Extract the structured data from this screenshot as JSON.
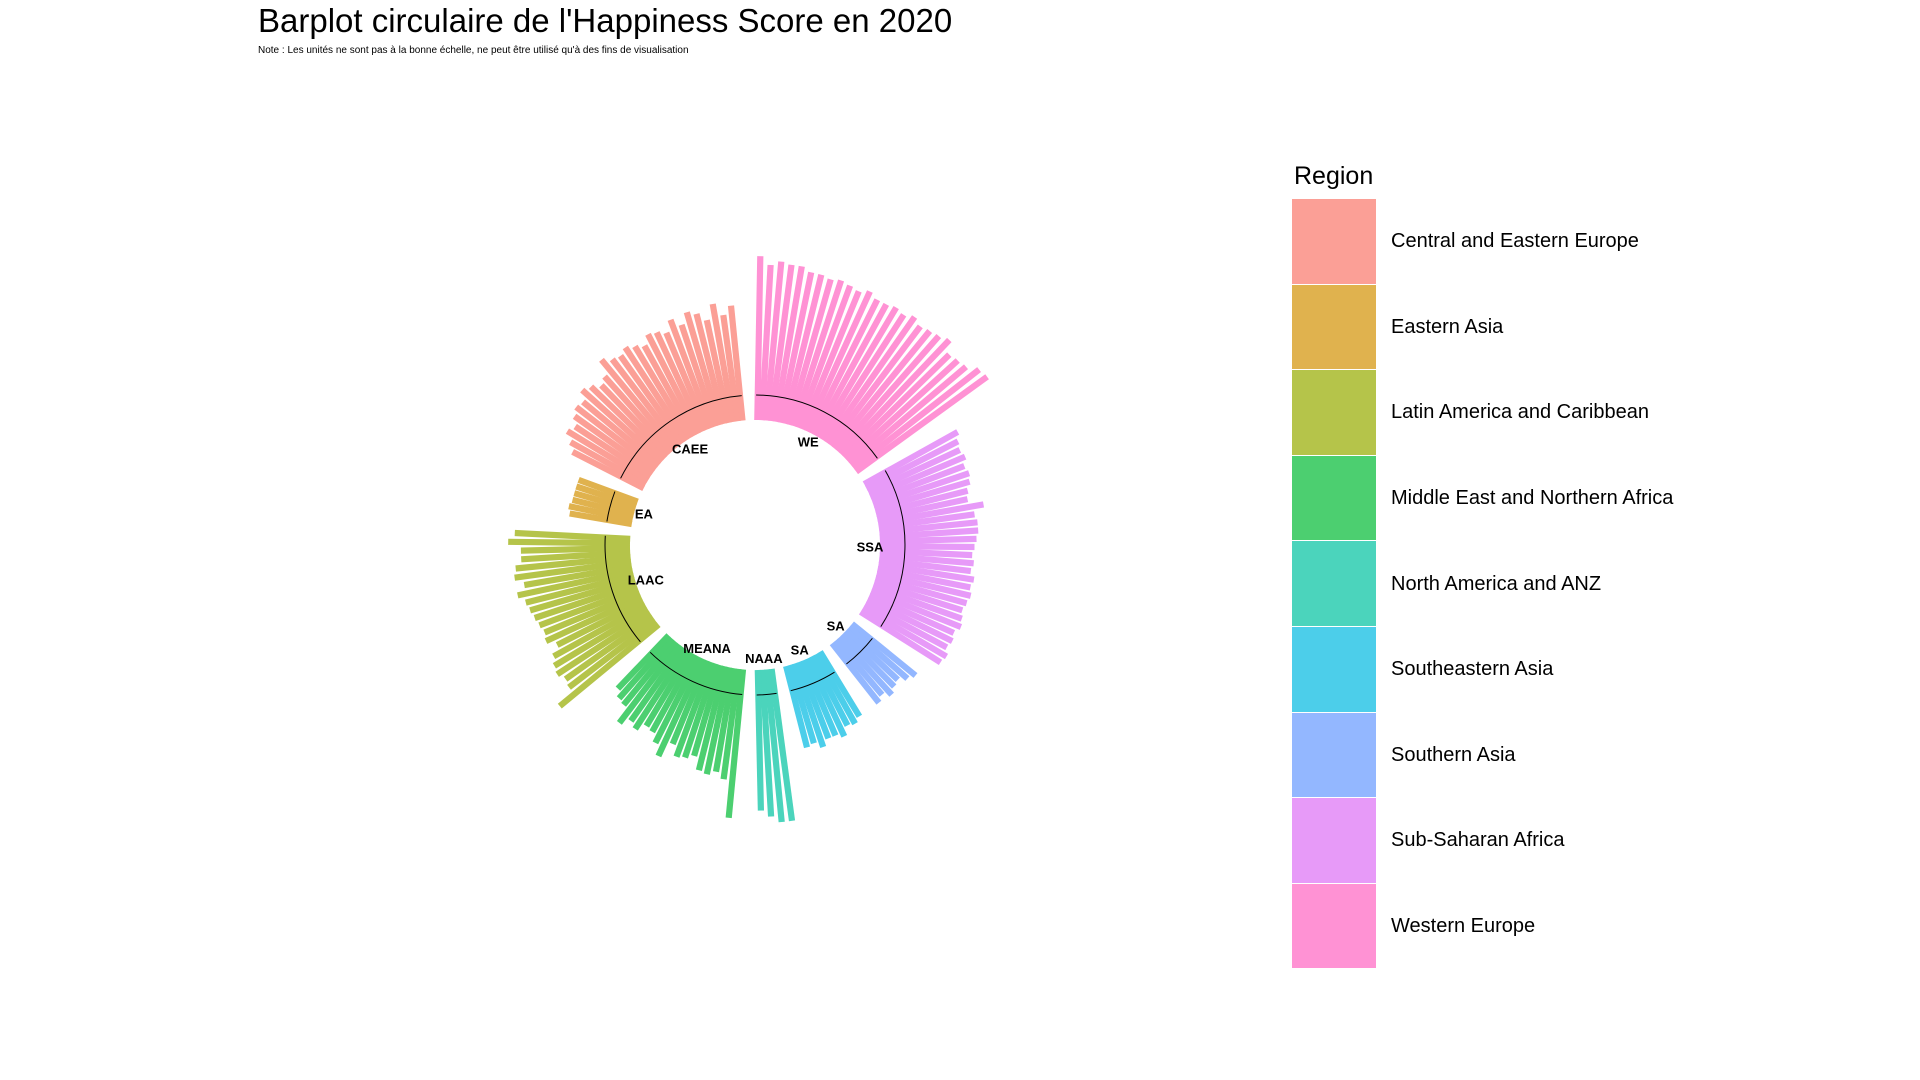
{
  "chart_data": {
    "type": "bar",
    "polar": true,
    "title": "Barplot circulaire de l'Happiness Score en 2020",
    "subtitle": "Note : Les unités ne sont pas à la bonne échelle, ne peut être utilisé qu'à des fins de visualisation",
    "legend": {
      "title": "Region",
      "placement": "right"
    },
    "groups": [
      {
        "label": "WE",
        "name": "Western Europe",
        "color": "#FF92D4",
        "values": [
          7.8,
          7.4,
          7.6,
          7.5,
          7.5,
          7.3,
          7.3,
          7.2,
          7.3,
          7.2,
          7.1,
          7.3,
          7.1,
          7.1,
          7.2,
          7.1,
          7.3,
          7.1,
          7.2,
          7.3,
          7.5,
          7.0,
          7.1,
          7.2,
          7.6,
          7.7
        ]
      },
      {
        "label": "SSA",
        "name": "Sub-Saharan Africa",
        "color": "#E79AF8",
        "values": [
          5.1,
          4.9,
          4.8,
          4.9,
          4.7,
          4.8,
          4.7,
          4.5,
          4.4,
          5.1,
          4.6,
          4.7,
          4.7,
          4.6,
          4.5,
          4.4,
          4.5,
          4.4,
          4.6,
          4.5,
          4.6,
          4.5,
          4.4,
          4.5,
          4.6,
          4.4,
          4.5,
          4.4,
          4.6,
          4.5
        ]
      },
      {
        "label": "SA",
        "name": "Southern Asia",
        "color": "#93B7FF",
        "values": [
          3.9,
          3.7,
          3.4,
          3.5,
          3.7,
          3.4,
          3.6
        ]
      },
      {
        "label": "SA",
        "name": "Southeastern Asia",
        "color": "#4CCEEA",
        "values": [
          3.6,
          3.8,
          3.7,
          4.1,
          3.9,
          3.9,
          4.2,
          3.9,
          4.0
        ]
      },
      {
        "label": "NAAA",
        "name": "North America and ANZ",
        "color": "#4BD4BC",
        "values": [
          7.3,
          7.3,
          7.0,
          6.7
        ]
      },
      {
        "label": "MEANA",
        "name": "Middle East and Northern Africa",
        "color": "#4CCF70",
        "values": [
          7.1,
          5.3,
          5.0,
          5.2,
          5.1,
          4.5,
          4.7,
          4.8,
          4.3,
          5.1,
          4.6,
          4.2,
          4.1,
          4.5,
          4.3,
          4.7,
          3.9,
          3.8,
          3.5
        ]
      },
      {
        "label": "LAAC",
        "name": "Latin America and Caribbean",
        "color": "#B5C44A",
        "values": [
          6.1,
          5.2,
          5.1,
          5.3,
          5.2,
          5.0,
          4.6,
          5.0,
          4.9,
          5.0,
          5.1,
          5.2,
          5.3,
          5.6,
          5.2,
          5.6,
          5.5,
          5.2,
          5.2,
          5.8,
          5.5
        ]
      },
      {
        "label": "EA",
        "name": "Eastern Asia",
        "color": "#E0B24E",
        "values": [
          3.0,
          3.1,
          3.0,
          3.0,
          3.0,
          3.0
        ]
      },
      {
        "label": "CAEE",
        "name": "Central and Eastern Europe",
        "color": "#FB9F96",
        "values": [
          3.8,
          4.1,
          4.5,
          4.3,
          4.6,
          4.8,
          4.7,
          5.1,
          4.9,
          4.6,
          4.8,
          5.5,
          5.2,
          5.1,
          5.3,
          5.1,
          4.9,
          5.3,
          5.2,
          5.0,
          5.5,
          5.1,
          5.6,
          5.4,
          5.0,
          5.7,
          5.1,
          5.5
        ]
      }
    ]
  },
  "legend_items": [
    {
      "label": "Central and Eastern Europe",
      "color": "#FB9F96"
    },
    {
      "label": "Eastern Asia",
      "color": "#E0B24E"
    },
    {
      "label": "Latin America and Caribbean",
      "color": "#B5C44A"
    },
    {
      "label": "Middle East and Northern Africa",
      "color": "#4CCF70"
    },
    {
      "label": "North America and ANZ",
      "color": "#4BD4BC"
    },
    {
      "label": "Southeastern Asia",
      "color": "#4CCEEA"
    },
    {
      "label": "Southern Asia",
      "color": "#93B7FF"
    },
    {
      "label": "Sub-Saharan Africa",
      "color": "#E79AF8"
    },
    {
      "label": "Western Europe",
      "color": "#FF92D4"
    }
  ]
}
